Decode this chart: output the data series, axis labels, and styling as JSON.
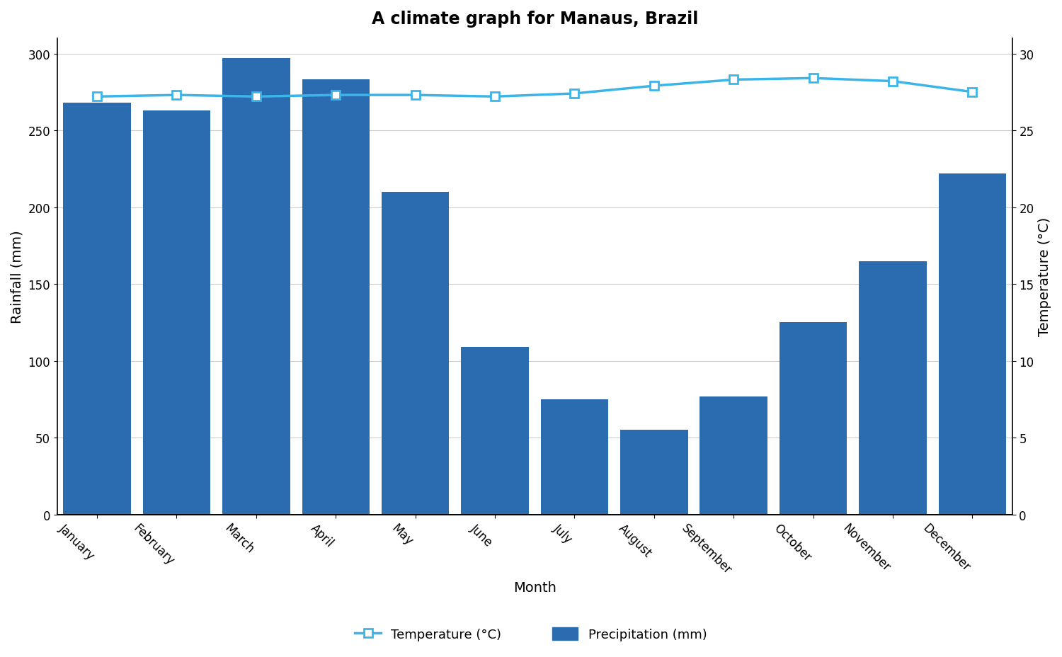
{
  "title": "A climate graph for Manaus, Brazil",
  "months": [
    "January",
    "February",
    "March",
    "April",
    "May",
    "June",
    "July",
    "August",
    "September",
    "October",
    "November",
    "December"
  ],
  "precipitation": [
    268,
    263,
    297,
    283,
    210,
    109,
    75,
    55,
    77,
    125,
    165,
    222
  ],
  "temperature": [
    27.2,
    27.3,
    27.2,
    27.3,
    27.3,
    27.2,
    27.4,
    27.9,
    28.3,
    28.4,
    28.2,
    27.5
  ],
  "bar_color": "#2b6cb0",
  "line_color": "#3bb5e8",
  "marker_facecolor": "white",
  "marker_edgecolor": "#3bb5e8",
  "ylabel_left": "Rainfall (mm)",
  "ylabel_right": "Temperature (°C)",
  "xlabel": "Month",
  "ylim_left": [
    0,
    310
  ],
  "ylim_right": [
    0,
    31
  ],
  "yticks_left": [
    0,
    50,
    100,
    150,
    200,
    250,
    300
  ],
  "yticks_right": [
    0,
    5,
    10,
    15,
    20,
    25,
    30
  ],
  "legend_temp": "Temperature (°C)",
  "legend_precip": "Precipitation (mm)",
  "bg_color": "#ffffff",
  "grid_color": "#cccccc"
}
